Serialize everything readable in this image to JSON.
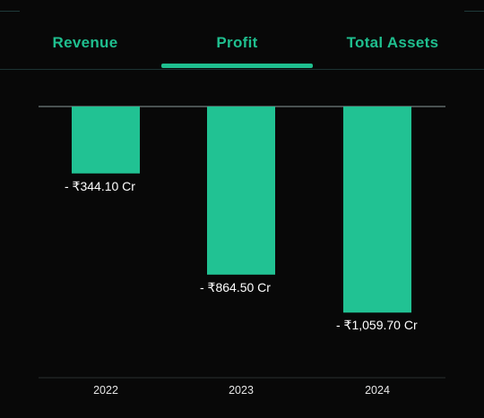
{
  "tabs": [
    {
      "label": "Revenue",
      "active": false
    },
    {
      "label": "Profit",
      "active": true
    },
    {
      "label": "Total Assets",
      "active": false
    }
  ],
  "colors": {
    "accent": "#1fbf8f",
    "bar": "#21c293",
    "background": "#080808",
    "text": "#ffffff",
    "baseline": "#8a9a9a"
  },
  "chart_data": {
    "type": "bar",
    "categories": [
      "2022",
      "2023",
      "2024"
    ],
    "values": [
      -344.1,
      -864.5,
      -1059.7
    ],
    "value_labels": [
      "- ₹344.10 Cr",
      "- ₹864.50 Cr",
      "- ₹1,059.70 Cr"
    ],
    "title": "",
    "xlabel": "",
    "ylabel": "",
    "ylim": [
      -1100,
      0
    ],
    "grid": false
  }
}
